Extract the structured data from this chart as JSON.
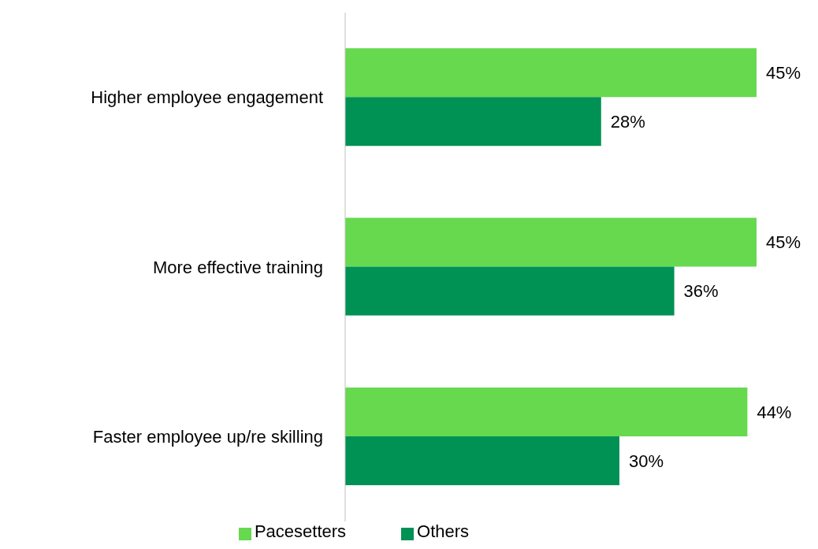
{
  "chart_data": {
    "type": "bar",
    "orientation": "horizontal",
    "categories": [
      "Higher employee engagement",
      "More effective training",
      "Faster employee up/re skilling"
    ],
    "series": [
      {
        "name": "Pacesetters",
        "color": "#66d94f",
        "values": [
          45,
          45,
          44
        ],
        "value_labels": [
          "45%",
          "45%",
          "44%"
        ]
      },
      {
        "name": "Others",
        "color": "#009154",
        "values": [
          28,
          36,
          30
        ],
        "value_labels": [
          "28%",
          "36%",
          "30%"
        ]
      }
    ],
    "legend": "bottom",
    "grid": false
  }
}
